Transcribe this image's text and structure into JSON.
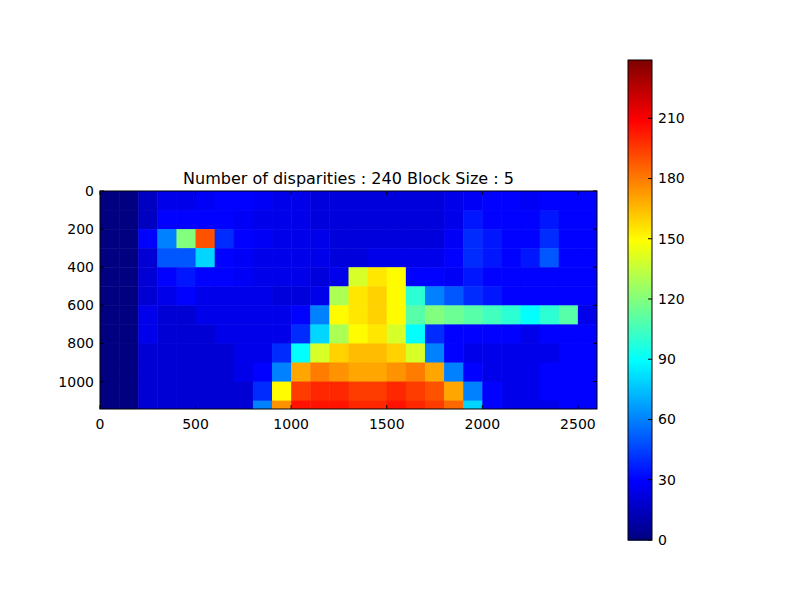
{
  "chart_data": {
    "type": "heatmap",
    "title": "Number of disparities : 240 Block Size : 5",
    "xlim": [
      0,
      2600
    ],
    "ylim": [
      1144,
      0
    ],
    "xticks": [
      0,
      500,
      1000,
      1500,
      2000,
      2500
    ],
    "yticks": [
      0,
      200,
      400,
      600,
      800,
      1000
    ],
    "x_edges": [
      0,
      100,
      200,
      300,
      400,
      500,
      600,
      700,
      800,
      900,
      1000,
      1100,
      1200,
      1300,
      1400,
      1500,
      1600,
      1700,
      1800,
      1900,
      2000,
      2100,
      2200,
      2300,
      2400,
      2500,
      2600
    ],
    "y_edges": [
      0,
      100,
      200,
      300,
      400,
      500,
      600,
      700,
      800,
      900,
      1000,
      1100,
      1144
    ],
    "cells": [
      [
        0,
        0,
        15,
        25,
        25,
        28,
        30,
        30,
        28,
        25,
        25,
        22,
        22,
        22,
        22,
        22,
        22,
        22,
        25,
        28,
        30,
        30,
        28,
        30,
        30,
        30
      ],
      [
        0,
        0,
        15,
        30,
        30,
        30,
        30,
        28,
        25,
        25,
        25,
        22,
        22,
        22,
        22,
        22,
        22,
        22,
        25,
        35,
        30,
        30,
        30,
        35,
        30,
        30
      ],
      [
        0,
        0,
        30,
        60,
        120,
        190,
        40,
        30,
        28,
        25,
        25,
        25,
        22,
        22,
        22,
        22,
        22,
        22,
        28,
        40,
        35,
        30,
        30,
        40,
        30,
        30
      ],
      [
        0,
        0,
        20,
        50,
        50,
        80,
        30,
        28,
        25,
        25,
        25,
        25,
        22,
        22,
        25,
        25,
        25,
        25,
        30,
        40,
        35,
        30,
        35,
        50,
        30,
        30
      ],
      [
        0,
        0,
        20,
        30,
        35,
        30,
        30,
        28,
        25,
        25,
        25,
        22,
        25,
        140,
        155,
        150,
        30,
        30,
        28,
        35,
        30,
        30,
        30,
        30,
        30,
        30
      ],
      [
        0,
        0,
        20,
        25,
        30,
        25,
        25,
        25,
        25,
        22,
        22,
        25,
        130,
        155,
        160,
        150,
        100,
        60,
        50,
        40,
        35,
        30,
        30,
        30,
        30,
        30
      ],
      [
        0,
        0,
        25,
        20,
        20,
        25,
        25,
        25,
        25,
        25,
        30,
        60,
        150,
        155,
        160,
        150,
        110,
        120,
        115,
        110,
        105,
        100,
        90,
        100,
        110,
        25
      ],
      [
        0,
        0,
        25,
        20,
        20,
        20,
        25,
        25,
        25,
        25,
        40,
        80,
        130,
        150,
        155,
        140,
        90,
        40,
        30,
        30,
        30,
        30,
        25,
        30,
        30,
        30
      ],
      [
        0,
        0,
        20,
        20,
        20,
        20,
        20,
        25,
        25,
        40,
        90,
        140,
        160,
        165,
        165,
        160,
        140,
        60,
        30,
        25,
        25,
        25,
        25,
        25,
        30,
        30
      ],
      [
        0,
        0,
        20,
        20,
        20,
        20,
        20,
        25,
        30,
        60,
        170,
        180,
        175,
        170,
        170,
        175,
        180,
        170,
        60,
        30,
        25,
        25,
        25,
        30,
        30,
        30
      ],
      [
        0,
        0,
        20,
        20,
        20,
        20,
        20,
        20,
        40,
        150,
        195,
        200,
        200,
        195,
        195,
        200,
        195,
        190,
        170,
        60,
        30,
        25,
        25,
        30,
        30,
        30
      ],
      [
        0,
        0,
        20,
        20,
        20,
        20,
        20,
        20,
        60,
        175,
        205,
        205,
        205,
        200,
        200,
        205,
        200,
        195,
        185,
        80,
        30,
        25,
        25,
        25,
        30,
        30
      ]
    ],
    "colorbar": {
      "range": [
        0,
        239
      ],
      "ticks": [
        0,
        30,
        60,
        90,
        120,
        150,
        180,
        210
      ]
    }
  }
}
